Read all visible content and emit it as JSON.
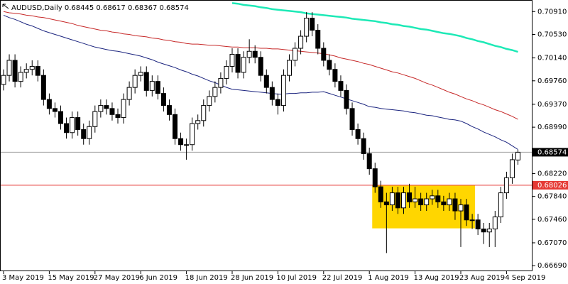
{
  "chart_data": {
    "type": "candlestick",
    "title": "AUDUSD,Daily 0.68445 0.68617 0.68367 0.68574",
    "categories": [
      "3 May 2019",
      null,
      null,
      null,
      null,
      null,
      null,
      null,
      "15 May 2019",
      null,
      null,
      null,
      null,
      null,
      null,
      null,
      "27 May 2019",
      null,
      null,
      null,
      null,
      null,
      null,
      null,
      "6 Jun 2019",
      null,
      null,
      null,
      null,
      null,
      null,
      null,
      "18 Jun 2019",
      null,
      null,
      null,
      null,
      null,
      null,
      null,
      "28 Jun 2019",
      null,
      null,
      null,
      null,
      null,
      null,
      null,
      "10 Jul 2019",
      null,
      null,
      null,
      null,
      null,
      null,
      null,
      "22 Jul 2019",
      null,
      null,
      null,
      null,
      null,
      null,
      null,
      "1 Aug 2019",
      null,
      null,
      null,
      null,
      null,
      null,
      null,
      "13 Aug 2019",
      null,
      null,
      null,
      null,
      null,
      null,
      null,
      "23 Aug 2019",
      null,
      null,
      null,
      null,
      null,
      null,
      null,
      "4 Sep 2019",
      null,
      null
    ],
    "open": [
      0.697,
      0.6985,
      0.701,
      0.6975,
      0.699,
      0.6995,
      0.7,
      0.6985,
      0.6945,
      0.693,
      0.6925,
      0.6905,
      0.689,
      0.6915,
      0.6895,
      0.688,
      0.69,
      0.6925,
      0.6935,
      0.693,
      0.692,
      0.6915,
      0.6945,
      0.6965,
      0.6985,
      0.699,
      0.696,
      0.6975,
      0.6955,
      0.6935,
      0.692,
      0.688,
      0.687,
      0.687,
      0.6905,
      0.691,
      0.6935,
      0.695,
      0.6965,
      0.698,
      0.7,
      0.702,
      0.699,
      0.7015,
      0.7025,
      0.7015,
      0.6985,
      0.6965,
      0.6945,
      0.6935,
      0.6985,
      0.701,
      0.703,
      0.705,
      0.708,
      0.706,
      0.703,
      0.701,
      0.6995,
      0.6975,
      0.696,
      0.693,
      0.6895,
      0.688,
      0.6855,
      0.683,
      0.68,
      0.6775,
      0.677,
      0.679,
      0.6765,
      0.679,
      0.6775,
      0.678,
      0.677,
      0.678,
      0.6785,
      0.6775,
      0.677,
      0.678,
      0.676,
      0.677,
      0.6745,
      0.6745,
      0.673,
      0.6725,
      0.673,
      0.675,
      0.679,
      0.6815,
      0.68445
    ],
    "high": [
      0.6995,
      0.702,
      0.702,
      0.7,
      0.7005,
      0.701,
      0.701,
      0.6995,
      0.6955,
      0.694,
      0.6935,
      0.6915,
      0.6925,
      0.6925,
      0.6905,
      0.691,
      0.6935,
      0.6945,
      0.6945,
      0.694,
      0.693,
      0.6955,
      0.6975,
      0.6995,
      0.7,
      0.7,
      0.6985,
      0.6985,
      0.6965,
      0.6945,
      0.693,
      0.689,
      0.688,
      0.6915,
      0.692,
      0.6945,
      0.696,
      0.6975,
      0.699,
      0.701,
      0.703,
      0.703,
      0.7025,
      0.7045,
      0.7035,
      0.7025,
      0.6995,
      0.6975,
      0.6955,
      0.6995,
      0.702,
      0.704,
      0.706,
      0.709,
      0.709,
      0.707,
      0.704,
      0.702,
      0.7005,
      0.6985,
      0.697,
      0.694,
      0.6905,
      0.689,
      0.6865,
      0.684,
      0.681,
      0.679,
      0.68,
      0.68,
      0.68,
      0.6805,
      0.68,
      0.679,
      0.679,
      0.6795,
      0.6795,
      0.6785,
      0.679,
      0.679,
      0.678,
      0.678,
      0.6755,
      0.6755,
      0.674,
      0.674,
      0.676,
      0.68,
      0.6825,
      0.6855,
      0.68617
    ],
    "low": [
      0.696,
      0.6975,
      0.6965,
      0.6965,
      0.698,
      0.6985,
      0.6975,
      0.6935,
      0.692,
      0.6915,
      0.6895,
      0.688,
      0.688,
      0.6885,
      0.687,
      0.687,
      0.689,
      0.6915,
      0.692,
      0.691,
      0.6905,
      0.6905,
      0.6935,
      0.6955,
      0.6975,
      0.695,
      0.695,
      0.6945,
      0.6925,
      0.691,
      0.687,
      0.686,
      0.6845,
      0.686,
      0.6895,
      0.69,
      0.6925,
      0.694,
      0.6955,
      0.697,
      0.699,
      0.698,
      0.698,
      0.7005,
      0.7005,
      0.6975,
      0.6955,
      0.6935,
      0.692,
      0.6925,
      0.6975,
      0.7,
      0.702,
      0.704,
      0.705,
      0.702,
      0.7,
      0.6985,
      0.6965,
      0.695,
      0.692,
      0.6885,
      0.687,
      0.6845,
      0.682,
      0.679,
      0.6765,
      0.669,
      0.676,
      0.6755,
      0.6755,
      0.6765,
      0.6765,
      0.676,
      0.676,
      0.677,
      0.6765,
      0.676,
      0.676,
      0.6745,
      0.67,
      0.6735,
      0.673,
      0.672,
      0.6705,
      0.67,
      0.67,
      0.674,
      0.678,
      0.6805,
      0.68367
    ],
    "close": [
      0.6985,
      0.701,
      0.6975,
      0.699,
      0.6995,
      0.7,
      0.6985,
      0.6945,
      0.693,
      0.6925,
      0.6905,
      0.689,
      0.6915,
      0.6895,
      0.688,
      0.69,
      0.6925,
      0.6935,
      0.693,
      0.692,
      0.6915,
      0.6945,
      0.6965,
      0.6985,
      0.699,
      0.696,
      0.6975,
      0.6955,
      0.6935,
      0.692,
      0.688,
      0.687,
      0.687,
      0.6905,
      0.691,
      0.6935,
      0.695,
      0.6965,
      0.698,
      0.7,
      0.702,
      0.699,
      0.7015,
      0.7025,
      0.7015,
      0.6985,
      0.6965,
      0.6945,
      0.6935,
      0.6985,
      0.701,
      0.703,
      0.705,
      0.708,
      0.706,
      0.703,
      0.701,
      0.6995,
      0.6975,
      0.696,
      0.693,
      0.6895,
      0.688,
      0.6855,
      0.683,
      0.68,
      0.6775,
      0.677,
      0.679,
      0.6765,
      0.679,
      0.6775,
      0.678,
      0.677,
      0.678,
      0.6785,
      0.6775,
      0.677,
      0.678,
      0.676,
      0.677,
      0.6745,
      0.6745,
      0.673,
      0.6725,
      0.673,
      0.675,
      0.679,
      0.6815,
      0.6845,
      0.68574
    ],
    "up_color": "#ffffff",
    "down_color": "#000000",
    "lines": [
      {
        "color": "#1a237e",
        "values": [
          0.7085,
          0.7081,
          0.7078,
          0.7074,
          0.707,
          0.7067,
          0.7063,
          0.7059,
          0.7056,
          0.7053,
          0.705,
          0.7047,
          0.7044,
          0.7041,
          0.7038,
          0.7035,
          0.7032,
          0.703,
          0.7028,
          0.7026,
          0.7025,
          0.7023,
          0.7021,
          0.7019,
          0.7017,
          0.7014,
          0.7011,
          0.7007,
          0.7004,
          0.7001,
          0.6998,
          0.6994,
          0.6991,
          0.6987,
          0.6984,
          0.698,
          0.6976,
          0.6973,
          0.6969,
          0.6965,
          0.6962,
          0.6961,
          0.696,
          0.6959,
          0.6958,
          0.6957,
          0.6956,
          0.6955,
          0.6954,
          0.6954,
          0.6955,
          0.6955,
          0.6956,
          0.6956,
          0.6957,
          0.6957,
          0.6958,
          0.6955,
          0.6952,
          0.6949,
          0.6946,
          0.6943,
          0.694,
          0.6937,
          0.6933,
          0.6932,
          0.693,
          0.6929,
          0.6928,
          0.6927,
          0.6926,
          0.6924,
          0.6923,
          0.6921,
          0.6919,
          0.6918,
          0.6916,
          0.6914,
          0.6912,
          0.6911,
          0.6909,
          0.6905,
          0.69,
          0.6896,
          0.6891,
          0.6887,
          0.6883,
          0.6878,
          0.6874,
          0.6868,
          0.6862
        ]
      },
      {
        "color": "#c62828",
        "values": [
          0.7091,
          0.7089,
          0.7088,
          0.7087,
          0.7085,
          0.7084,
          0.7082,
          0.7081,
          0.7079,
          0.7077,
          0.7075,
          0.7073,
          0.7071,
          0.7068,
          0.7066,
          0.7064,
          0.7062,
          0.706,
          0.7059,
          0.7057,
          0.7056,
          0.7054,
          0.7053,
          0.7051,
          0.705,
          0.7049,
          0.7047,
          0.7046,
          0.7044,
          0.7043,
          0.7041,
          0.704,
          0.7038,
          0.7037,
          0.7037,
          0.7036,
          0.7035,
          0.7035,
          0.7034,
          0.7033,
          0.7032,
          0.7032,
          0.7031,
          0.7031,
          0.7031,
          0.703,
          0.703,
          0.7029,
          0.7029,
          0.7028,
          0.7027,
          0.7026,
          0.7025,
          0.7024,
          0.7023,
          0.7022,
          0.7021,
          0.7019,
          0.7017,
          0.7014,
          0.7012,
          0.701,
          0.7008,
          0.7005,
          0.7003,
          0.7,
          0.6997,
          0.6994,
          0.6991,
          0.6989,
          0.6986,
          0.6983,
          0.698,
          0.6976,
          0.6972,
          0.6969,
          0.6965,
          0.6961,
          0.6957,
          0.6954,
          0.695,
          0.6946,
          0.6943,
          0.6939,
          0.6936,
          0.6932,
          0.6928,
          0.6925,
          0.6921,
          0.6917,
          0.6912
        ]
      },
      {
        "color": "#1de9b6",
        "values": [
          null,
          null,
          null,
          null,
          null,
          null,
          null,
          null,
          null,
          null,
          null,
          null,
          null,
          null,
          null,
          null,
          null,
          null,
          null,
          null,
          null,
          null,
          null,
          null,
          null,
          null,
          null,
          null,
          null,
          null,
          null,
          null,
          null,
          null,
          null,
          null,
          null,
          null,
          null,
          null,
          0.7105,
          0.7104,
          0.7102,
          0.7101,
          0.71,
          0.7098,
          0.7097,
          0.7095,
          0.7094,
          0.7093,
          0.7092,
          0.7091,
          0.709,
          0.7088,
          0.7087,
          0.7086,
          0.7085,
          0.7084,
          0.7083,
          0.7082,
          0.7081,
          0.7079,
          0.7078,
          0.7077,
          0.7076,
          0.7075,
          0.7073,
          0.7072,
          0.707,
          0.7069,
          0.7067,
          0.7066,
          0.7064,
          0.7062,
          0.7061,
          0.7059,
          0.7057,
          0.7055,
          0.7054,
          0.7052,
          0.705,
          0.7047,
          0.7045,
          0.7042,
          0.704,
          0.7037,
          0.7034,
          0.7032,
          0.7029,
          0.7027,
          0.7024
        ]
      }
    ],
    "price_line": {
      "value": 0.68574,
      "color": "#9e9e9e",
      "label_color": "#000000"
    },
    "level_line": {
      "value": 0.68026,
      "color": "#e53935",
      "label_color": "#e53935"
    },
    "zone": {
      "start": 65,
      "end": 82,
      "ylim": [
        0.6731,
        0.6803
      ],
      "color": "#ffd600"
    },
    "ylim": [
      0.6661,
      0.7109
    ],
    "yticks": [
      {
        "value": 0.7091,
        "label": "0.70910"
      },
      {
        "value": 0.7053,
        "label": "0.70530"
      },
      {
        "value": 0.7014,
        "label": "0.70140"
      },
      {
        "value": 0.6976,
        "label": "0.69760"
      },
      {
        "value": 0.6937,
        "label": "0.69370"
      },
      {
        "value": 0.6899,
        "label": "0.68990"
      },
      {
        "value": 0.6822,
        "label": "0.68220"
      },
      {
        "value": 0.6784,
        "label": "0.67840"
      },
      {
        "value": 0.6746,
        "label": "0.67460"
      },
      {
        "value": 0.6707,
        "label": "0.67070"
      },
      {
        "value": 0.6669,
        "label": "0.66690"
      }
    ]
  }
}
